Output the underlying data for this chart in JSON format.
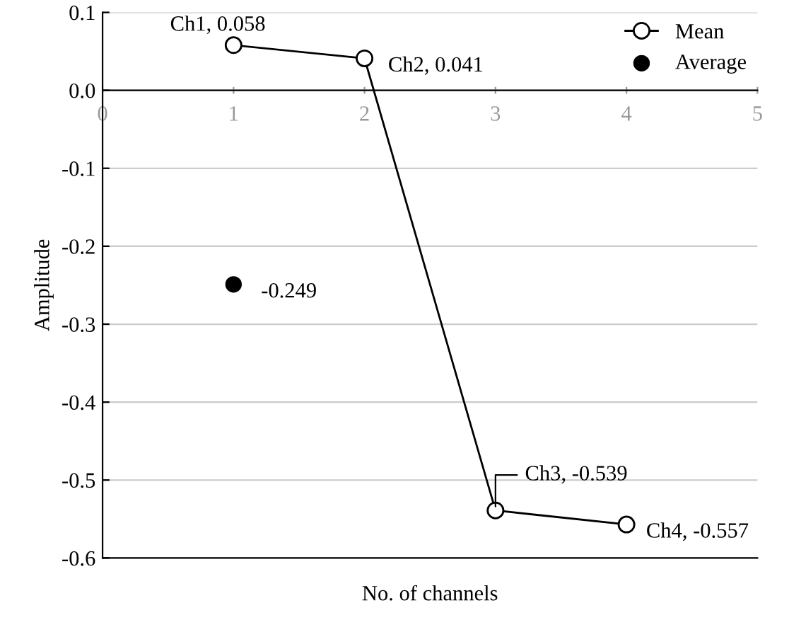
{
  "chart_data": {
    "type": "line",
    "xlabel": "No. of channels",
    "ylabel": "Amplitude",
    "xlim": [
      0,
      5
    ],
    "xticks": [
      0,
      1,
      2,
      3,
      4,
      5
    ],
    "ylim": [
      -0.6,
      0.1
    ],
    "yticks": [
      0.1,
      {
        "value": 0,
        "label": "0.0"
      },
      -0.1,
      -0.2,
      -0.3,
      -0.4,
      -0.5,
      -0.6
    ],
    "grid": "y",
    "legend": "top right",
    "marker": "circle",
    "line_style": "solid",
    "series": [
      {
        "name": "Mean",
        "color": "#000000",
        "x": [
          1,
          2,
          3,
          4
        ],
        "values": [
          0.058,
          0.041,
          -0.539,
          -0.557
        ]
      },
      {
        "name": "Average",
        "type": "scatter",
        "color": "#000000",
        "x": [
          1
        ],
        "values": [
          -0.249
        ]
      }
    ],
    "annotations": [
      {
        "text": "Ch1, 0.058",
        "x": 1,
        "y": 0.058
      },
      {
        "text": "Ch2, 0.041",
        "x": 2,
        "y": 0.041
      },
      {
        "text": "Ch3, -0.539",
        "x": 3,
        "y": -0.539
      },
      {
        "text": "Ch4, -0.557",
        "x": 4,
        "y": -0.557
      },
      {
        "text": "-0.249",
        "x": 1,
        "y": -0.249
      }
    ]
  }
}
